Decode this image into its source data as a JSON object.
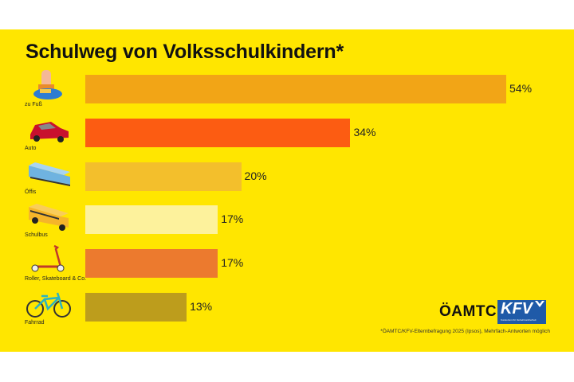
{
  "chart_data": {
    "type": "bar",
    "orientation": "horizontal",
    "title": "Schulweg von Volksschulkindern*",
    "categories": [
      "zu Fuß",
      "Auto",
      "Öffis",
      "Schulbus",
      "Roller, Skateboard & Co.",
      "Fahrrad"
    ],
    "values": [
      54,
      34,
      20,
      17,
      17,
      13
    ],
    "value_labels": [
      "54%",
      "34%",
      "20%",
      "17%",
      "17%",
      "13%"
    ],
    "colors": [
      "#f2a516",
      "#fc5c12",
      "#f3bf2c",
      "#fdf29c",
      "#ec7a2e",
      "#bd9d1c"
    ],
    "icons": [
      "walking-feet-icon",
      "car-icon",
      "train-icon",
      "school-bus-icon",
      "scooter-icon",
      "bicycle-icon"
    ],
    "unit": "%",
    "xlim": [
      0,
      54
    ],
    "grid": false,
    "legend": "none"
  },
  "logos": {
    "oamtc": "ÖAMTC",
    "kfv": "KFV",
    "kfv_sub": "Kuratorium für Verkehrssicherheit"
  },
  "footnote": "*ÖAMTC/KFV-Elternbefragung 2025 (Ipsos), Mehrfach-Antworten möglich",
  "background_color": "#ffe600"
}
